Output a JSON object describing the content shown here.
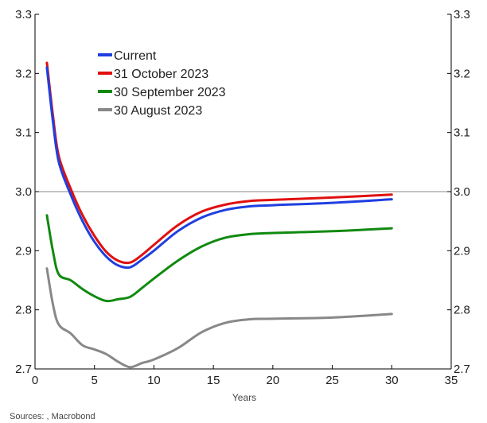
{
  "chart_data": {
    "type": "line",
    "xlabel": "Years",
    "ylabel_left": "",
    "ylabel_right": "",
    "xlim": [
      0,
      35
    ],
    "ylim": [
      2.7,
      3.3
    ],
    "x_ticks": [
      0,
      5,
      10,
      15,
      20,
      25,
      30,
      35
    ],
    "x_tick_labels": [
      "0",
      "5",
      "10",
      "15",
      "20",
      "25",
      "30",
      "35"
    ],
    "y_ticks": [
      2.7,
      2.8,
      2.9,
      3.0,
      3.1,
      3.2,
      3.3
    ],
    "y_tick_labels": [
      "2.7",
      "2.8",
      "2.9",
      "3.0",
      "3.1",
      "3.2",
      "3.3"
    ],
    "reference_line": 3.0,
    "grid": false,
    "legend_position": "top-center",
    "source": "Sources: , Macrobond",
    "series": [
      {
        "name": "Current",
        "color": "#1f3fe0",
        "x": [
          1,
          1.5,
          2,
          3,
          4,
          5,
          6,
          7,
          8,
          9,
          10,
          12,
          14,
          16,
          18,
          20,
          25,
          30
        ],
        "y": [
          3.21,
          3.12,
          3.05,
          2.995,
          2.95,
          2.915,
          2.89,
          2.875,
          2.872,
          2.885,
          2.9,
          2.933,
          2.956,
          2.969,
          2.975,
          2.977,
          2.981,
          2.987
        ]
      },
      {
        "name": "31 October 2023",
        "color": "#e01010",
        "x": [
          1,
          1.5,
          2,
          3,
          4,
          5,
          6,
          7,
          8,
          9,
          10,
          12,
          14,
          16,
          18,
          20,
          25,
          30
        ],
        "y": [
          3.218,
          3.13,
          3.06,
          3.005,
          2.96,
          2.925,
          2.898,
          2.883,
          2.88,
          2.893,
          2.91,
          2.943,
          2.966,
          2.978,
          2.984,
          2.986,
          2.99,
          2.995
        ]
      },
      {
        "name": "30 September 2023",
        "color": "#108a10",
        "x": [
          1,
          1.5,
          2,
          3,
          4,
          5,
          6,
          7,
          8,
          9,
          10,
          12,
          14,
          16,
          18,
          20,
          25,
          30
        ],
        "y": [
          2.96,
          2.9,
          2.86,
          2.85,
          2.835,
          2.823,
          2.815,
          2.818,
          2.822,
          2.837,
          2.853,
          2.883,
          2.907,
          2.922,
          2.928,
          2.93,
          2.933,
          2.938
        ]
      },
      {
        "name": "30 August 2023",
        "color": "#888888",
        "x": [
          1,
          1.5,
          2,
          3,
          4,
          5,
          6,
          7,
          8,
          9,
          10,
          12,
          14,
          16,
          18,
          20,
          25,
          30
        ],
        "y": [
          2.87,
          2.81,
          2.775,
          2.76,
          2.74,
          2.733,
          2.725,
          2.712,
          2.703,
          2.71,
          2.716,
          2.735,
          2.762,
          2.778,
          2.784,
          2.785,
          2.787,
          2.793
        ]
      }
    ]
  }
}
